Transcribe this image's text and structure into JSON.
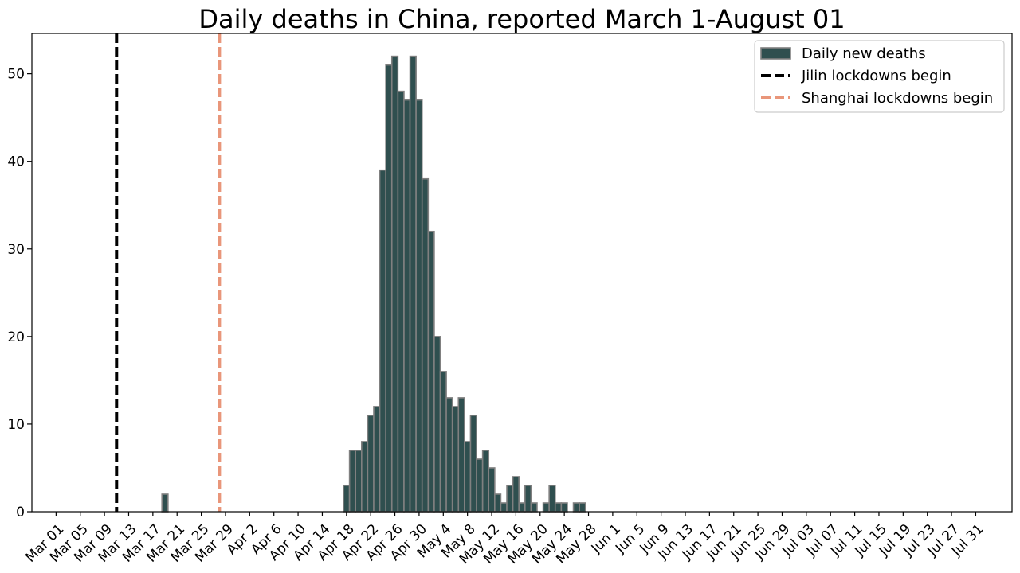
{
  "chart_data": {
    "type": "bar",
    "title": "Daily deaths in China, reported March 1-August 01",
    "xlabel": "",
    "ylabel": "",
    "ylim": [
      0,
      54.6
    ],
    "yticks": [
      0,
      10,
      20,
      30,
      40,
      50
    ],
    "grid": false,
    "legend_position": "top-right",
    "x_start_date": "2022-03-01",
    "num_days": 153,
    "x_tick_labels": [
      "Mar 01",
      "Mar 05",
      "Mar 09",
      "Mar 13",
      "Mar 17",
      "Mar 21",
      "Mar 25",
      "Mar 29",
      "Apr 2",
      "Apr 6",
      "Apr 10",
      "Apr 14",
      "Apr 18",
      "Apr 22",
      "Apr 26",
      "Apr 30",
      "May 4",
      "May 8",
      "May 12",
      "May 16",
      "May 20",
      "May 24",
      "May 28",
      "Jun 1",
      "Jun 5",
      "Jun 9",
      "Jun 13",
      "Jun 17",
      "Jun 21",
      "Jun 25",
      "Jun 29",
      "Jul 03",
      "Jul 07",
      "Jul 11",
      "Jul 15",
      "Jul 19",
      "Jul 23",
      "Jul 27",
      "Jul 31"
    ],
    "series": [
      {
        "name": "Daily new deaths",
        "color": "#2f4f4f",
        "edge_color": "#808080",
        "values": [
          0,
          0,
          0,
          0,
          0,
          0,
          0,
          0,
          0,
          0,
          0,
          0,
          0,
          0,
          0,
          0,
          0,
          0,
          2,
          0,
          0,
          0,
          0,
          0,
          0,
          0,
          0,
          0,
          0,
          0,
          0,
          0,
          0,
          0,
          0,
          0,
          0,
          0,
          0,
          0,
          0,
          0,
          0,
          0,
          0,
          0,
          0,
          0,
          3,
          7,
          7,
          8,
          11,
          12,
          39,
          51,
          52,
          48,
          47,
          52,
          47,
          38,
          32,
          20,
          16,
          13,
          12,
          13,
          8,
          11,
          6,
          7,
          5,
          2,
          1,
          3,
          4,
          1,
          3,
          1,
          0,
          1,
          3,
          1,
          1,
          0,
          1,
          1,
          0,
          0,
          0,
          0,
          0,
          0,
          0,
          0,
          0,
          0,
          0,
          0,
          0,
          0,
          0,
          0,
          0,
          0,
          0,
          0,
          0,
          0,
          0,
          0,
          0,
          0,
          0,
          0,
          0,
          0,
          0,
          0,
          0,
          0,
          0,
          0,
          0,
          0,
          0,
          0,
          0,
          0,
          0,
          0,
          0,
          0,
          0,
          0,
          0,
          0,
          0,
          0,
          0,
          0,
          0,
          0,
          0,
          0,
          0,
          0,
          0,
          0,
          0,
          0,
          0
        ]
      }
    ],
    "vlines": [
      {
        "name": "Jilin lockdowns begin",
        "date": "2022-03-11",
        "color": "#000000"
      },
      {
        "name": "Shanghai lockdowns begin",
        "date": "2022-03-28",
        "color": "#e9967a"
      }
    ]
  }
}
